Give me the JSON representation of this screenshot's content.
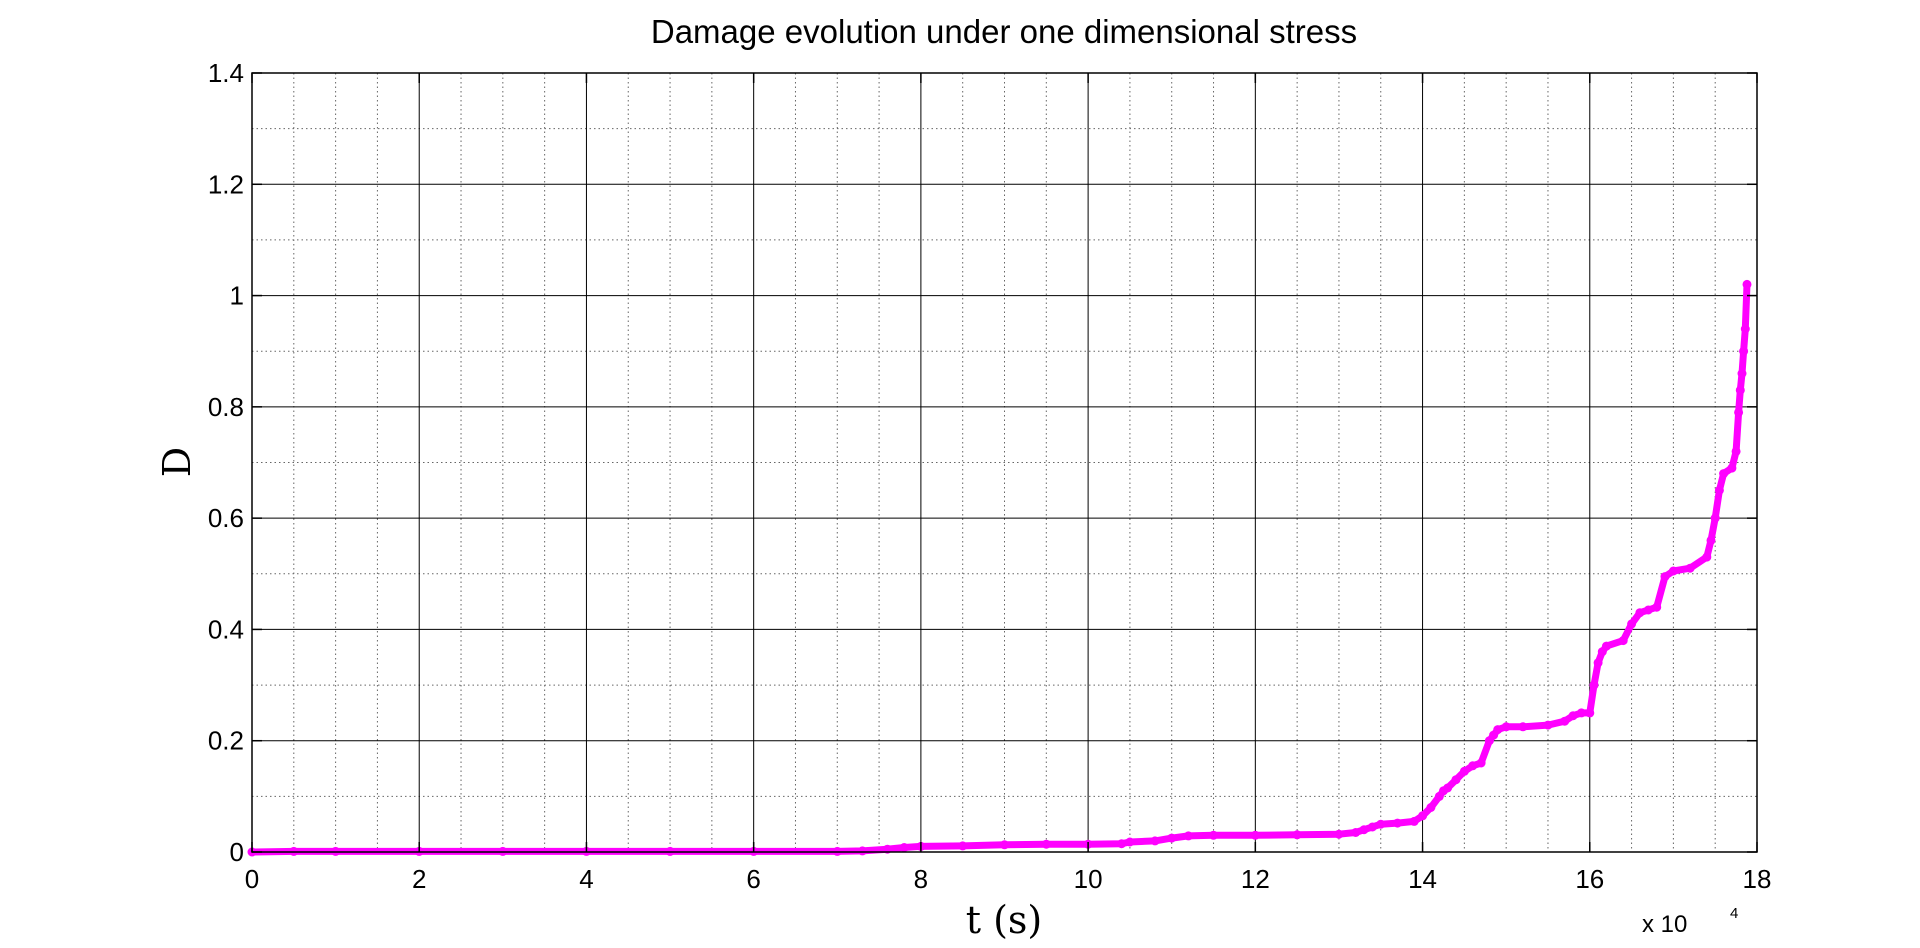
{
  "chart_data": {
    "type": "scatter",
    "title": "Damage evolution under one dimensional stress",
    "xlabel": "t (s)",
    "ylabel": "D",
    "x_multiplier_label": "x 10",
    "x_multiplier_exponent": "4",
    "xlim": [
      0,
      18
    ],
    "ylim": [
      0,
      1.4
    ],
    "xticks": [
      0,
      2,
      4,
      6,
      8,
      10,
      12,
      14,
      16,
      18
    ],
    "xtick_labels": [
      "0",
      "2",
      "4",
      "6",
      "8",
      "10",
      "12",
      "14",
      "16",
      "18"
    ],
    "yticks": [
      0,
      0.2,
      0.4,
      0.6,
      0.8,
      1.0,
      1.2,
      1.4
    ],
    "ytick_labels": [
      "0",
      "0.2",
      "0.4",
      "0.6",
      "0.8",
      "1",
      "1.2",
      "1.4"
    ],
    "grid": true,
    "minor_grid": true,
    "marker_color": "#ff00ff",
    "series": [
      {
        "name": "",
        "x": [
          0,
          0.5,
          1,
          2,
          3,
          4,
          5,
          6,
          7,
          7.3,
          7.6,
          7.8,
          8.0,
          8.5,
          9.0,
          9.5,
          10.0,
          10.4,
          10.5,
          10.8,
          11.0,
          11.2,
          11.5,
          12.0,
          12.5,
          13.0,
          13.2,
          13.3,
          13.4,
          13.5,
          13.7,
          13.9,
          14.0,
          14.1,
          14.2,
          14.25,
          14.3,
          14.4,
          14.5,
          14.6,
          14.7,
          14.8,
          14.85,
          14.9,
          15.0,
          15.2,
          15.5,
          15.7,
          15.8,
          15.9,
          16.0,
          16.05,
          16.1,
          16.15,
          16.2,
          16.4,
          16.5,
          16.6,
          16.7,
          16.8,
          16.9,
          17.0,
          17.2,
          17.4,
          17.45,
          17.5,
          17.55,
          17.6,
          17.7,
          17.75,
          17.78,
          17.8,
          17.82,
          17.84,
          17.86,
          17.88
        ],
        "y": [
          0,
          0.001,
          0.001,
          0.001,
          0.001,
          0.001,
          0.001,
          0.001,
          0.001,
          0.002,
          0.005,
          0.008,
          0.01,
          0.011,
          0.013,
          0.014,
          0.014,
          0.015,
          0.018,
          0.02,
          0.025,
          0.029,
          0.03,
          0.03,
          0.031,
          0.032,
          0.035,
          0.04,
          0.045,
          0.05,
          0.052,
          0.055,
          0.065,
          0.08,
          0.1,
          0.11,
          0.115,
          0.13,
          0.145,
          0.155,
          0.16,
          0.2,
          0.21,
          0.22,
          0.225,
          0.225,
          0.228,
          0.235,
          0.245,
          0.25,
          0.25,
          0.3,
          0.34,
          0.36,
          0.37,
          0.38,
          0.41,
          0.43,
          0.435,
          0.44,
          0.495,
          0.505,
          0.51,
          0.53,
          0.56,
          0.6,
          0.65,
          0.68,
          0.69,
          0.72,
          0.79,
          0.83,
          0.86,
          0.9,
          0.94,
          1.02
        ]
      }
    ]
  }
}
